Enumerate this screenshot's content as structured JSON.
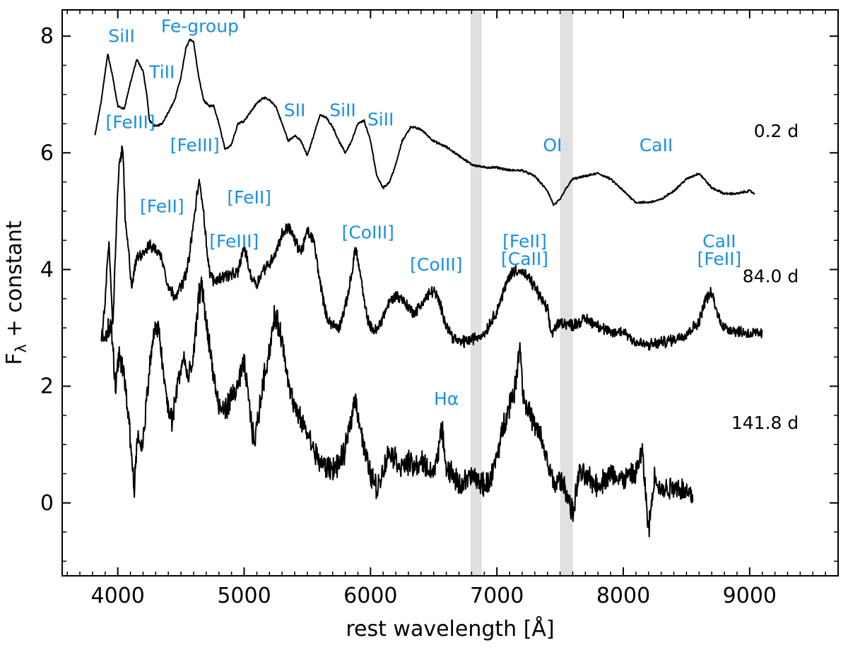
{
  "chart_data": {
    "type": "line",
    "xlabel": "rest wavelength [Å]",
    "ylabel_main": "F",
    "ylabel_sub": "λ",
    "ylabel_rest": " + constant",
    "xlim": [
      3560,
      9700
    ],
    "ylim": [
      -1.25,
      8.45
    ],
    "xticks": [
      4000,
      5000,
      6000,
      7000,
      8000,
      9000
    ],
    "xtick_labels": [
      "4000",
      "5000",
      "6000",
      "7000",
      "8000",
      "9000"
    ],
    "xminor_step": 100,
    "yticks": [
      0,
      2,
      4,
      6,
      8
    ],
    "ytick_labels": [
      "0",
      "2",
      "4",
      "6",
      "8"
    ],
    "yminor_step": 0.5,
    "grid": false,
    "colors": {
      "line": "#000000",
      "annotation": "#1a8fe8",
      "telluric_band": "#e0e0e0"
    },
    "telluric_bands": [
      [
        6790,
        6880
      ],
      [
        7500,
        7600
      ]
    ],
    "series": [
      {
        "epoch": "0.2 d",
        "noise": 0.015,
        "points": [
          [
            3820,
            6.3
          ],
          [
            3870,
            6.9
          ],
          [
            3920,
            7.7
          ],
          [
            3960,
            7.3
          ],
          [
            4000,
            6.8
          ],
          [
            4050,
            6.75
          ],
          [
            4100,
            7.2
          ],
          [
            4150,
            7.6
          ],
          [
            4200,
            7.4
          ],
          [
            4230,
            7.0
          ],
          [
            4250,
            6.55
          ],
          [
            4300,
            6.45
          ],
          [
            4350,
            6.5
          ],
          [
            4400,
            6.7
          ],
          [
            4450,
            6.9
          ],
          [
            4500,
            7.3
          ],
          [
            4540,
            7.8
          ],
          [
            4570,
            7.95
          ],
          [
            4600,
            7.9
          ],
          [
            4640,
            7.3
          ],
          [
            4680,
            6.9
          ],
          [
            4720,
            6.8
          ],
          [
            4760,
            6.8
          ],
          [
            4800,
            6.5
          ],
          [
            4850,
            6.05
          ],
          [
            4900,
            6.15
          ],
          [
            4950,
            6.5
          ],
          [
            5000,
            6.55
          ],
          [
            5050,
            6.7
          ],
          [
            5100,
            6.85
          ],
          [
            5150,
            6.95
          ],
          [
            5200,
            6.9
          ],
          [
            5250,
            6.8
          ],
          [
            5300,
            6.5
          ],
          [
            5350,
            6.2
          ],
          [
            5400,
            6.3
          ],
          [
            5450,
            6.2
          ],
          [
            5500,
            5.95
          ],
          [
            5550,
            6.3
          ],
          [
            5600,
            6.65
          ],
          [
            5650,
            6.6
          ],
          [
            5700,
            6.45
          ],
          [
            5750,
            6.2
          ],
          [
            5800,
            6.0
          ],
          [
            5850,
            6.2
          ],
          [
            5900,
            6.5
          ],
          [
            5950,
            6.55
          ],
          [
            6000,
            6.2
          ],
          [
            6050,
            5.6
          ],
          [
            6100,
            5.4
          ],
          [
            6150,
            5.5
          ],
          [
            6200,
            5.8
          ],
          [
            6250,
            6.2
          ],
          [
            6320,
            6.45
          ],
          [
            6400,
            6.4
          ],
          [
            6500,
            6.2
          ],
          [
            6600,
            6.1
          ],
          [
            6700,
            5.95
          ],
          [
            6800,
            5.8
          ],
          [
            6900,
            5.75
          ],
          [
            7000,
            5.75
          ],
          [
            7100,
            5.7
          ],
          [
            7200,
            5.7
          ],
          [
            7300,
            5.6
          ],
          [
            7400,
            5.35
          ],
          [
            7450,
            5.1
          ],
          [
            7500,
            5.2
          ],
          [
            7550,
            5.4
          ],
          [
            7600,
            5.55
          ],
          [
            7700,
            5.6
          ],
          [
            7800,
            5.65
          ],
          [
            7900,
            5.55
          ],
          [
            8000,
            5.35
          ],
          [
            8100,
            5.15
          ],
          [
            8200,
            5.15
          ],
          [
            8300,
            5.2
          ],
          [
            8400,
            5.35
          ],
          [
            8500,
            5.55
          ],
          [
            8600,
            5.65
          ],
          [
            8700,
            5.4
          ],
          [
            8800,
            5.3
          ],
          [
            8900,
            5.3
          ],
          [
            9000,
            5.35
          ],
          [
            9040,
            5.3
          ]
        ]
      },
      {
        "epoch": "84.0 d",
        "noise": 0.08,
        "points": [
          [
            3870,
            2.7
          ],
          [
            3900,
            3.5
          ],
          [
            3930,
            4.5
          ],
          [
            3960,
            3.0
          ],
          [
            3990,
            4.8
          ],
          [
            4010,
            5.8
          ],
          [
            4040,
            6.1
          ],
          [
            4060,
            4.8
          ],
          [
            4090,
            4.2
          ],
          [
            4110,
            3.7
          ],
          [
            4150,
            4.2
          ],
          [
            4200,
            4.3
          ],
          [
            4250,
            4.4
          ],
          [
            4300,
            4.35
          ],
          [
            4350,
            4.2
          ],
          [
            4400,
            3.7
          ],
          [
            4450,
            3.55
          ],
          [
            4500,
            3.7
          ],
          [
            4550,
            4.0
          ],
          [
            4600,
            4.8
          ],
          [
            4640,
            5.5
          ],
          [
            4670,
            5.2
          ],
          [
            4720,
            4.0
          ],
          [
            4760,
            3.8
          ],
          [
            4800,
            3.85
          ],
          [
            4850,
            3.9
          ],
          [
            4900,
            3.9
          ],
          [
            4950,
            3.95
          ],
          [
            5000,
            4.4
          ],
          [
            5050,
            3.9
          ],
          [
            5100,
            3.75
          ],
          [
            5150,
            4.0
          ],
          [
            5200,
            4.1
          ],
          [
            5250,
            4.3
          ],
          [
            5300,
            4.6
          ],
          [
            5350,
            4.75
          ],
          [
            5400,
            4.5
          ],
          [
            5450,
            4.3
          ],
          [
            5500,
            4.65
          ],
          [
            5550,
            4.5
          ],
          [
            5600,
            3.8
          ],
          [
            5650,
            3.2
          ],
          [
            5700,
            3.05
          ],
          [
            5750,
            3.0
          ],
          [
            5800,
            3.35
          ],
          [
            5850,
            3.9
          ],
          [
            5880,
            4.4
          ],
          [
            5920,
            3.9
          ],
          [
            5960,
            3.3
          ],
          [
            6000,
            3.0
          ],
          [
            6050,
            2.95
          ],
          [
            6100,
            3.2
          ],
          [
            6150,
            3.45
          ],
          [
            6200,
            3.55
          ],
          [
            6250,
            3.5
          ],
          [
            6300,
            3.35
          ],
          [
            6350,
            3.25
          ],
          [
            6400,
            3.4
          ],
          [
            6450,
            3.55
          ],
          [
            6500,
            3.65
          ],
          [
            6550,
            3.4
          ],
          [
            6600,
            3.05
          ],
          [
            6650,
            2.85
          ],
          [
            6700,
            2.75
          ],
          [
            6800,
            2.8
          ],
          [
            6900,
            2.9
          ],
          [
            7000,
            3.3
          ],
          [
            7050,
            3.6
          ],
          [
            7100,
            3.9
          ],
          [
            7150,
            4.0
          ],
          [
            7200,
            3.95
          ],
          [
            7250,
            3.85
          ],
          [
            7300,
            3.7
          ],
          [
            7350,
            3.5
          ],
          [
            7400,
            3.3
          ],
          [
            7430,
            2.9
          ],
          [
            7460,
            3.0
          ],
          [
            7500,
            3.1
          ],
          [
            7600,
            3.05
          ],
          [
            7700,
            3.15
          ],
          [
            7800,
            3.05
          ],
          [
            7900,
            2.9
          ],
          [
            8000,
            2.95
          ],
          [
            8100,
            2.75
          ],
          [
            8200,
            2.7
          ],
          [
            8300,
            2.75
          ],
          [
            8400,
            2.8
          ],
          [
            8500,
            2.9
          ],
          [
            8600,
            3.1
          ],
          [
            8650,
            3.5
          ],
          [
            8700,
            3.6
          ],
          [
            8750,
            3.2
          ],
          [
            8800,
            3.0
          ],
          [
            8900,
            2.95
          ],
          [
            9000,
            2.9
          ],
          [
            9100,
            2.9
          ]
        ]
      },
      {
        "epoch": "141.8 d",
        "noise": 0.16,
        "points": [
          [
            3870,
            2.8
          ],
          [
            3900,
            2.9
          ],
          [
            3950,
            3.0
          ],
          [
            3980,
            2.0
          ],
          [
            4010,
            2.5
          ],
          [
            4050,
            2.2
          ],
          [
            4080,
            1.6
          ],
          [
            4110,
            0.8
          ],
          [
            4130,
            0.3
          ],
          [
            4160,
            1.2
          ],
          [
            4190,
            0.9
          ],
          [
            4230,
            1.8
          ],
          [
            4270,
            2.7
          ],
          [
            4300,
            3.0
          ],
          [
            4330,
            2.9
          ],
          [
            4360,
            2.2
          ],
          [
            4400,
            1.6
          ],
          [
            4430,
            1.4
          ],
          [
            4470,
            2.0
          ],
          [
            4520,
            2.5
          ],
          [
            4560,
            2.1
          ],
          [
            4600,
            2.5
          ],
          [
            4640,
            3.5
          ],
          [
            4660,
            3.8
          ],
          [
            4700,
            3.1
          ],
          [
            4750,
            2.3
          ],
          [
            4800,
            1.6
          ],
          [
            4850,
            1.6
          ],
          [
            4900,
            1.8
          ],
          [
            4950,
            2.0
          ],
          [
            5000,
            2.4
          ],
          [
            5050,
            1.5
          ],
          [
            5080,
            1.0
          ],
          [
            5120,
            1.6
          ],
          [
            5160,
            2.2
          ],
          [
            5200,
            2.6
          ],
          [
            5240,
            3.2
          ],
          [
            5280,
            3.0
          ],
          [
            5320,
            2.5
          ],
          [
            5360,
            2.0
          ],
          [
            5400,
            1.6
          ],
          [
            5450,
            1.4
          ],
          [
            5500,
            1.2
          ],
          [
            5550,
            0.9
          ],
          [
            5600,
            0.7
          ],
          [
            5650,
            0.6
          ],
          [
            5700,
            0.6
          ],
          [
            5750,
            0.65
          ],
          [
            5800,
            0.9
          ],
          [
            5850,
            1.5
          ],
          [
            5880,
            1.8
          ],
          [
            5920,
            1.3
          ],
          [
            5960,
            0.8
          ],
          [
            6000,
            0.5
          ],
          [
            6050,
            0.25
          ],
          [
            6100,
            0.55
          ],
          [
            6150,
            0.9
          ],
          [
            6200,
            0.75
          ],
          [
            6250,
            0.6
          ],
          [
            6300,
            0.7
          ],
          [
            6350,
            0.6
          ],
          [
            6400,
            0.7
          ],
          [
            6450,
            0.6
          ],
          [
            6500,
            0.5
          ],
          [
            6550,
            1.1
          ],
          [
            6570,
            1.2
          ],
          [
            6600,
            0.6
          ],
          [
            6650,
            0.5
          ],
          [
            6700,
            0.3
          ],
          [
            6800,
            0.45
          ],
          [
            6900,
            0.3
          ],
          [
            6950,
            0.4
          ],
          [
            7000,
            0.8
          ],
          [
            7050,
            1.3
          ],
          [
            7100,
            1.7
          ],
          [
            7150,
            2.0
          ],
          [
            7180,
            2.8
          ],
          [
            7210,
            1.8
          ],
          [
            7250,
            1.6
          ],
          [
            7300,
            1.3
          ],
          [
            7350,
            1.1
          ],
          [
            7400,
            0.7
          ],
          [
            7450,
            0.3
          ],
          [
            7500,
            0.4
          ],
          [
            7550,
            0.2
          ],
          [
            7600,
            -0.2
          ],
          [
            7650,
            0.5
          ],
          [
            7700,
            0.45
          ],
          [
            7800,
            0.3
          ],
          [
            7900,
            0.5
          ],
          [
            8000,
            0.4
          ],
          [
            8100,
            0.5
          ],
          [
            8150,
            0.9
          ],
          [
            8200,
            -0.5
          ],
          [
            8250,
            0.5
          ],
          [
            8300,
            0.2
          ],
          [
            8400,
            0.3
          ],
          [
            8500,
            0.2
          ],
          [
            8550,
            0.1
          ]
        ]
      }
    ],
    "epoch_labels": [
      {
        "text": "0.2 d",
        "x": 9120,
        "y": 6.27
      },
      {
        "text": "84.0 d",
        "x": 9120,
        "y": 3.78
      },
      {
        "text": "141.8 d",
        "x": 9120,
        "y": 1.27
      }
    ],
    "annotations": [
      {
        "text": "SiII",
        "x": 4030,
        "y": 7.9
      },
      {
        "text": "Fe-group",
        "x": 4650,
        "y": 8.07
      },
      {
        "text": "TiII",
        "x": 4350,
        "y": 7.28
      },
      {
        "text": "[FeIII]",
        "x": 4100,
        "y": 6.42
      },
      {
        "text": "[FeIII]",
        "x": 4610,
        "y": 6.03
      },
      {
        "text": "SII",
        "x": 5400,
        "y": 6.63
      },
      {
        "text": "SiII",
        "x": 5780,
        "y": 6.63
      },
      {
        "text": "SiII",
        "x": 6080,
        "y": 6.47
      },
      {
        "text": "OI",
        "x": 7440,
        "y": 6.03
      },
      {
        "text": "CaII",
        "x": 8260,
        "y": 6.03
      },
      {
        "text": "[FeII]",
        "x": 4350,
        "y": 4.98
      },
      {
        "text": "[FeII]",
        "x": 5040,
        "y": 5.13
      },
      {
        "text": "[FeIII]",
        "x": 4920,
        "y": 4.38
      },
      {
        "text": "[CoIII]",
        "x": 5980,
        "y": 4.53
      },
      {
        "text": "[CoIII]",
        "x": 6520,
        "y": 3.98
      },
      {
        "text": "[FeII]",
        "x": 7220,
        "y": 4.38
      },
      {
        "text": "[CaII]",
        "x": 7220,
        "y": 4.08
      },
      {
        "text": "CaII",
        "x": 8760,
        "y": 4.38
      },
      {
        "text": "[FeII]",
        "x": 8760,
        "y": 4.08
      },
      {
        "text": "Hα",
        "x": 6600,
        "y": 1.68
      }
    ]
  }
}
